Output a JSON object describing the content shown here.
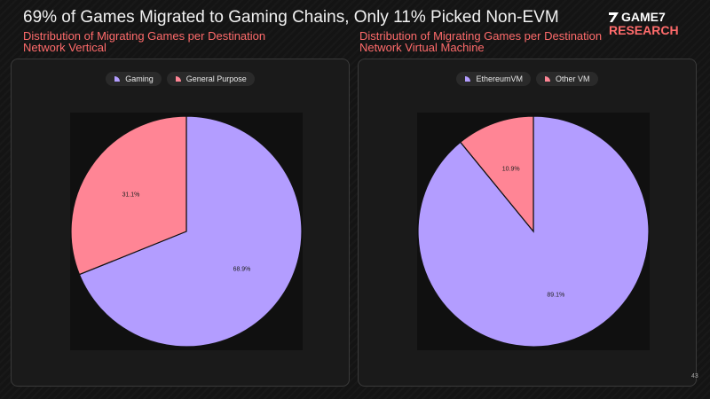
{
  "header": {
    "title": "69% of Games Migrated to Gaming Chains, Only 11% Picked Non-EVM",
    "logo_top": "GAME7",
    "logo_bottom": "RESEARCH"
  },
  "page_number": "43",
  "colors": {
    "purple": "#b39dff",
    "pink": "#ff8595",
    "accent": "#ff6b6b"
  },
  "chart_data": [
    {
      "type": "pie",
      "title": "Distribution of Migrating Games per Destination Network Vertical",
      "legend": [
        "Gaming",
        "General Purpose"
      ],
      "slices": [
        {
          "label": "Gaming",
          "value": 68.9,
          "display": "68.9%",
          "color": "#b39dff"
        },
        {
          "label": "General Purpose",
          "value": 31.1,
          "display": "31.1%",
          "color": "#ff8595"
        }
      ],
      "legend_position": "top-center"
    },
    {
      "type": "pie",
      "title": "Distribution of Migrating Games per Destination Network Virtual Machine",
      "legend": [
        "EthereumVM",
        "Other VM"
      ],
      "slices": [
        {
          "label": "EthereumVM",
          "value": 89.1,
          "display": "89.1%",
          "color": "#b39dff"
        },
        {
          "label": "Other VM",
          "value": 10.9,
          "display": "10.9%",
          "color": "#ff8595"
        }
      ],
      "legend_position": "top-center"
    }
  ]
}
